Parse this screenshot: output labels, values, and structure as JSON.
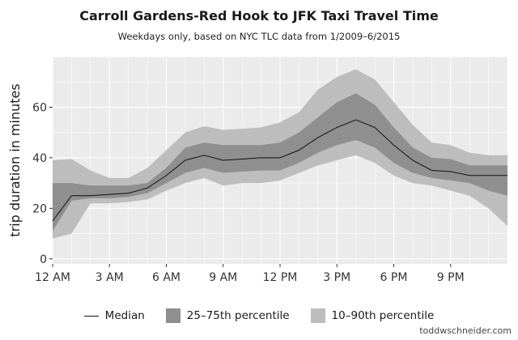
{
  "chart_data": {
    "type": "line",
    "title": "Carroll Gardens-Red Hook to JFK Taxi Travel Time",
    "subtitle": "Weekdays only, based on NYC TLC data from 1/2009–6/2015",
    "ylabel": "trip duration in minutes",
    "xlabel": "",
    "x_ticks": [
      "12 AM",
      "3 AM",
      "6 AM",
      "9 AM",
      "12 PM",
      "3 PM",
      "6 PM",
      "9 PM"
    ],
    "y_ticks": [
      "0",
      "20",
      "40",
      "60"
    ],
    "xlim": [
      0,
      24
    ],
    "ylim": [
      -2,
      80
    ],
    "x_hours": [
      0,
      1,
      2,
      3,
      4,
      5,
      6,
      7,
      8,
      9,
      10,
      11,
      12,
      13,
      14,
      15,
      16,
      17,
      18,
      19,
      20,
      21,
      22,
      23,
      24
    ],
    "median": [
      15,
      25,
      25,
      25.5,
      26,
      28,
      33,
      39,
      41,
      39,
      39.5,
      40,
      40,
      43,
      48,
      52,
      55,
      52,
      45,
      39,
      35,
      34.5,
      33,
      33,
      33
    ],
    "p25": [
      11,
      23,
      24,
      24,
      24.5,
      26,
      30,
      34,
      36,
      34,
      34.5,
      35,
      35,
      38,
      42,
      45,
      47,
      44,
      38,
      34,
      32,
      31,
      30,
      27,
      25
    ],
    "p75": [
      30,
      30,
      29,
      29,
      29,
      30,
      36,
      44,
      46,
      45,
      45,
      45,
      46,
      50,
      56,
      62,
      65.5,
      61,
      52,
      44,
      40,
      39.5,
      37,
      37,
      37
    ],
    "p10": [
      8,
      10,
      22,
      22,
      22.5,
      23.5,
      27,
      30,
      32,
      29,
      30,
      30,
      31,
      34,
      37,
      39,
      41,
      38,
      33,
      30,
      29,
      27,
      25,
      20,
      13
    ],
    "p90": [
      39,
      39.5,
      35,
      32,
      32,
      36,
      43,
      50,
      52.5,
      51,
      51.5,
      52,
      54,
      58,
      67,
      72,
      75,
      71,
      62,
      53,
      46,
      45,
      42,
      41,
      41
    ],
    "colors": {
      "panel_bg": "#ebebeb",
      "grid": "#ffffff",
      "band_10_90": "#bdbdbd",
      "band_25_75": "#8f8f8f",
      "median": "#111111"
    },
    "legend": {
      "position": "bottom",
      "items": [
        "Median",
        "25–75th percentile",
        "10–90th percentile"
      ]
    },
    "grid": true
  },
  "credit": "toddwschneider.com"
}
